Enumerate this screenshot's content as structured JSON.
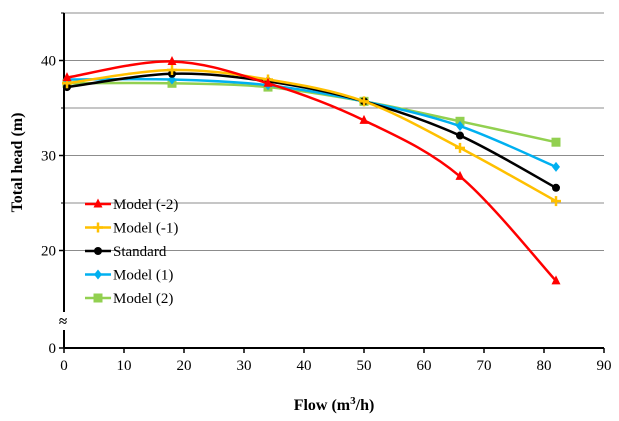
{
  "chart_data": {
    "type": "line",
    "xlabel": "Flow (m",
    "xlabel_sup": "3",
    "xlabel_tail": "/h)",
    "ylabel": "Total head  (m)",
    "xlim": [
      0,
      90
    ],
    "x_ticks": [
      "0",
      "10",
      "20",
      "30",
      "40",
      "50",
      "60",
      "70",
      "80",
      "90"
    ],
    "y_axis_break": true,
    "y_ticks": [
      "0",
      "20",
      "30",
      "40"
    ],
    "y_upper_range": [
      15,
      45
    ],
    "y_gridlines": [
      20,
      25,
      30,
      35,
      40,
      45
    ],
    "break_symbol": "≈",
    "legend_position": "left",
    "series": [
      {
        "name": "Model (-2)",
        "color": "#ff0000",
        "marker": "triangle",
        "x": [
          0.5,
          18,
          34,
          50,
          66,
          82
        ],
        "y": [
          38.2,
          39.9,
          37.6,
          33.7,
          27.8,
          16.8
        ]
      },
      {
        "name": "Model (-1)",
        "color": "#ffc000",
        "marker": "plus",
        "x": [
          0.5,
          18,
          34,
          50,
          66,
          82
        ],
        "y": [
          37.6,
          39.0,
          38.0,
          35.7,
          30.8,
          25.2
        ]
      },
      {
        "name": "Standard",
        "color": "#000000",
        "marker": "circle",
        "x": [
          0.5,
          18,
          34,
          50,
          66,
          82
        ],
        "y": [
          37.2,
          38.6,
          37.8,
          35.7,
          32.1,
          26.6
        ]
      },
      {
        "name": "Model (1)",
        "color": "#00b0f0",
        "marker": "diamond",
        "x": [
          0.5,
          18,
          34,
          50,
          66,
          82
        ],
        "y": [
          38.0,
          38.0,
          37.4,
          35.7,
          33.1,
          28.8
        ]
      },
      {
        "name": "Model (2)",
        "color": "#92d050",
        "marker": "square",
        "x": [
          0.5,
          18,
          34,
          50,
          66,
          82
        ],
        "y": [
          37.6,
          37.6,
          37.2,
          35.7,
          33.6,
          31.4
        ]
      }
    ]
  }
}
